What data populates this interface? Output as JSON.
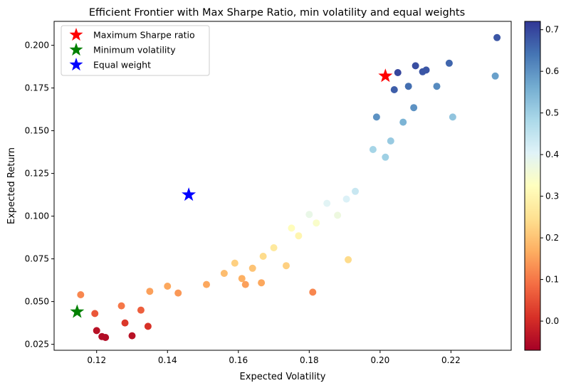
{
  "chart_data": {
    "type": "scatter",
    "title": "Efficient Frontier with Max Sharpe Ratio, min volatility and equal weights",
    "xlabel": "Expected Volatility",
    "ylabel": "Expected Return",
    "xlim": [
      0.108,
      0.237
    ],
    "ylim": [
      0.0215,
      0.214
    ],
    "xticks": [
      {
        "value": 0.12,
        "label": "0.12"
      },
      {
        "value": 0.14,
        "label": "0.14"
      },
      {
        "value": 0.16,
        "label": "0.16"
      },
      {
        "value": 0.18,
        "label": "0.18"
      },
      {
        "value": 0.2,
        "label": "0.20"
      },
      {
        "value": 0.22,
        "label": "0.22"
      }
    ],
    "yticks": [
      {
        "value": 0.025,
        "label": "0.025"
      },
      {
        "value": 0.05,
        "label": "0.050"
      },
      {
        "value": 0.075,
        "label": "0.075"
      },
      {
        "value": 0.1,
        "label": "0.100"
      },
      {
        "value": 0.125,
        "label": "0.125"
      },
      {
        "value": 0.15,
        "label": "0.150"
      },
      {
        "value": 0.175,
        "label": "0.175"
      },
      {
        "value": 0.2,
        "label": "0.200"
      }
    ],
    "grid": false,
    "legend": {
      "placement": "top-left",
      "entries": [
        {
          "label": "Maximum Sharpe ratio",
          "color": "#ff0000",
          "marker": "star"
        },
        {
          "label": "Minimum volatility",
          "color": "#008000",
          "marker": "star"
        },
        {
          "label": "Equal weight",
          "color": "#0000ff",
          "marker": "star"
        }
      ]
    },
    "colorbar": {
      "colormap": "RdYlBu",
      "range": [
        -0.07,
        0.72
      ],
      "ticks": [
        {
          "value": 0.0,
          "label": "0.0"
        },
        {
          "value": 0.1,
          "label": "0.1"
        },
        {
          "value": 0.2,
          "label": "0.2"
        },
        {
          "value": 0.3,
          "label": "0.3"
        },
        {
          "value": 0.4,
          "label": "0.4"
        },
        {
          "value": 0.5,
          "label": "0.5"
        },
        {
          "value": 0.6,
          "label": "0.6"
        },
        {
          "value": 0.7,
          "label": "0.7"
        }
      ]
    },
    "special_points": [
      {
        "label": "Maximum Sharpe ratio",
        "x": 0.2015,
        "y": 0.182,
        "color": "#ff0000"
      },
      {
        "label": "Minimum volatility",
        "x": 0.1145,
        "y": 0.044,
        "color": "#008000"
      },
      {
        "label": "Equal weight",
        "x": 0.146,
        "y": 0.1125,
        "color": "#0000ff"
      }
    ],
    "points": [
      {
        "x": 0.12,
        "y": 0.033,
        "c": -0.04
      },
      {
        "x": 0.1215,
        "y": 0.0295,
        "c": -0.05
      },
      {
        "x": 0.1225,
        "y": 0.029,
        "c": -0.05
      },
      {
        "x": 0.13,
        "y": 0.03,
        "c": -0.04
      },
      {
        "x": 0.128,
        "y": 0.0375,
        "c": 0.02
      },
      {
        "x": 0.1345,
        "y": 0.0355,
        "c": 0.01
      },
      {
        "x": 0.1195,
        "y": 0.043,
        "c": 0.06
      },
      {
        "x": 0.1325,
        "y": 0.045,
        "c": 0.07
      },
      {
        "x": 0.127,
        "y": 0.0475,
        "c": 0.1
      },
      {
        "x": 0.181,
        "y": 0.0555,
        "c": 0.12
      },
      {
        "x": 0.1155,
        "y": 0.054,
        "c": 0.12
      },
      {
        "x": 0.162,
        "y": 0.06,
        "c": 0.15
      },
      {
        "x": 0.161,
        "y": 0.0635,
        "c": 0.17
      },
      {
        "x": 0.1665,
        "y": 0.061,
        "c": 0.16
      },
      {
        "x": 0.164,
        "y": 0.0695,
        "c": 0.2
      },
      {
        "x": 0.1735,
        "y": 0.071,
        "c": 0.22
      },
      {
        "x": 0.191,
        "y": 0.0745,
        "c": 0.24
      },
      {
        "x": 0.177,
        "y": 0.0885,
        "c": 0.3
      },
      {
        "x": 0.151,
        "y": 0.06,
        "c": 0.16
      },
      {
        "x": 0.143,
        "y": 0.055,
        "c": 0.14
      },
      {
        "x": 0.14,
        "y": 0.059,
        "c": 0.16
      },
      {
        "x": 0.135,
        "y": 0.056,
        "c": 0.15
      },
      {
        "x": 0.156,
        "y": 0.0665,
        "c": 0.19
      },
      {
        "x": 0.159,
        "y": 0.0725,
        "c": 0.22
      },
      {
        "x": 0.167,
        "y": 0.0765,
        "c": 0.24
      },
      {
        "x": 0.17,
        "y": 0.0815,
        "c": 0.27
      },
      {
        "x": 0.175,
        "y": 0.093,
        "c": 0.32
      },
      {
        "x": 0.182,
        "y": 0.096,
        "c": 0.34
      },
      {
        "x": 0.188,
        "y": 0.1005,
        "c": 0.37
      },
      {
        "x": 0.193,
        "y": 0.1145,
        "c": 0.44
      },
      {
        "x": 0.1905,
        "y": 0.11,
        "c": 0.41
      },
      {
        "x": 0.185,
        "y": 0.1075,
        "c": 0.4
      },
      {
        "x": 0.18,
        "y": 0.101,
        "c": 0.38
      },
      {
        "x": 0.2015,
        "y": 0.1345,
        "c": 0.5
      },
      {
        "x": 0.2205,
        "y": 0.158,
        "c": 0.52
      },
      {
        "x": 0.2325,
        "y": 0.182,
        "c": 0.58
      },
      {
        "x": 0.233,
        "y": 0.2045,
        "c": 0.68
      },
      {
        "x": 0.2195,
        "y": 0.1895,
        "c": 0.66
      },
      {
        "x": 0.216,
        "y": 0.176,
        "c": 0.61
      },
      {
        "x": 0.2065,
        "y": 0.155,
        "c": 0.55
      },
      {
        "x": 0.203,
        "y": 0.144,
        "c": 0.51
      },
      {
        "x": 0.198,
        "y": 0.139,
        "c": 0.49
      },
      {
        "x": 0.21,
        "y": 0.188,
        "c": 0.69
      },
      {
        "x": 0.213,
        "y": 0.1855,
        "c": 0.68
      },
      {
        "x": 0.212,
        "y": 0.1845,
        "c": 0.68
      },
      {
        "x": 0.208,
        "y": 0.176,
        "c": 0.65
      },
      {
        "x": 0.2095,
        "y": 0.1635,
        "c": 0.6
      },
      {
        "x": 0.205,
        "y": 0.184,
        "c": 0.7
      },
      {
        "x": 0.204,
        "y": 0.174,
        "c": 0.67
      },
      {
        "x": 0.199,
        "y": 0.158,
        "c": 0.6
      }
    ]
  }
}
